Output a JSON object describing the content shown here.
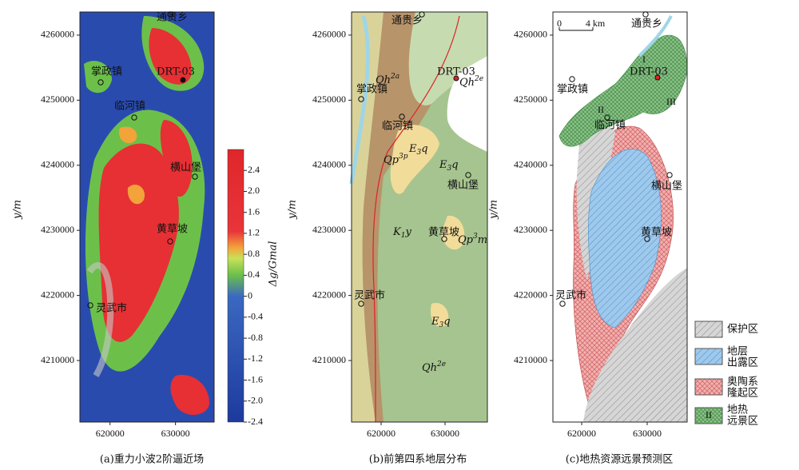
{
  "panels": [
    {
      "caption": "(a)重力小波2阶逼近场",
      "y_label": "y/m",
      "xlim": [
        615400,
        635900
      ],
      "ylim": [
        4200550,
        4263550
      ],
      "xticks": [
        620000,
        630000
      ],
      "yticks": [
        4210000,
        4220000,
        4230000,
        4240000,
        4250000,
        4260000
      ],
      "places": [
        "通贵乡",
        "掌政镇",
        "DRT-03",
        "临河镇",
        "横山堡",
        "黄草坡",
        "灵武市"
      ],
      "colorbar": {
        "label": "Δg/Gmal",
        "lim": [
          -2.4,
          2.8
        ],
        "ticks": [
          2.4,
          {
            "value": 2,
            "label": "2.0"
          },
          1.6,
          1.2,
          0.8,
          0.4,
          0,
          -0.4,
          -0.8,
          -1.2,
          -1.6,
          {
            "value": -2,
            "label": "-2.0"
          },
          -2.4
        ]
      }
    },
    {
      "caption": "(b)前第四系地层分布",
      "y_label": "y/m",
      "xlim": [
        615375,
        636625
      ],
      "ylim": [
        4200550,
        4263550
      ],
      "xticks": [
        620000,
        630000
      ],
      "yticks": [
        4210000,
        4220000,
        4230000,
        4240000,
        4250000,
        4260000
      ],
      "places": [
        "通贵乡",
        "掌政镇",
        "DRT-03",
        "临河镇",
        "横山堡",
        "黄草坡",
        "灵武市"
      ],
      "units": [
        {
          "text": "Qh",
          "sup": "2a"
        },
        {
          "text": "Qh",
          "sup": "2e"
        },
        {
          "text": "E",
          "sub": "3",
          "tail": "q"
        },
        {
          "text": "Qp",
          "sup": "3p"
        },
        {
          "text": "E",
          "sub": "3",
          "tail": "q"
        },
        {
          "text": "K",
          "sub": "1",
          "tail": "y"
        },
        {
          "text": "Qp",
          "sup": "3",
          "tail": "m"
        },
        {
          "text": "E",
          "sub": "3",
          "tail": "q"
        },
        {
          "text": "Qh",
          "sup": "2e"
        }
      ]
    },
    {
      "caption": "(c)地热资源远景预测区",
      "y_label": "y/m",
      "xlim": [
        615610,
        636100
      ],
      "ylim": [
        4200550,
        4263550
      ],
      "xticks": [
        620000,
        630000
      ],
      "yticks": [
        4210000,
        4220000,
        4230000,
        4240000,
        4250000,
        4260000
      ],
      "places": [
        "通贵乡",
        "掌政镇",
        "DRT-03",
        "临河镇",
        "横山堡",
        "黄草坡",
        "灵武市"
      ],
      "scale": [
        "0",
        "4 km"
      ],
      "zones": [
        "I",
        "II",
        "III"
      ],
      "legend": [
        [
          "保护区"
        ],
        [
          "地层",
          "出露区"
        ],
        [
          "奥陶系",
          "隆起区"
        ],
        [
          "地热",
          "远景区"
        ]
      ],
      "legend_zone_mark": "II"
    }
  ]
}
